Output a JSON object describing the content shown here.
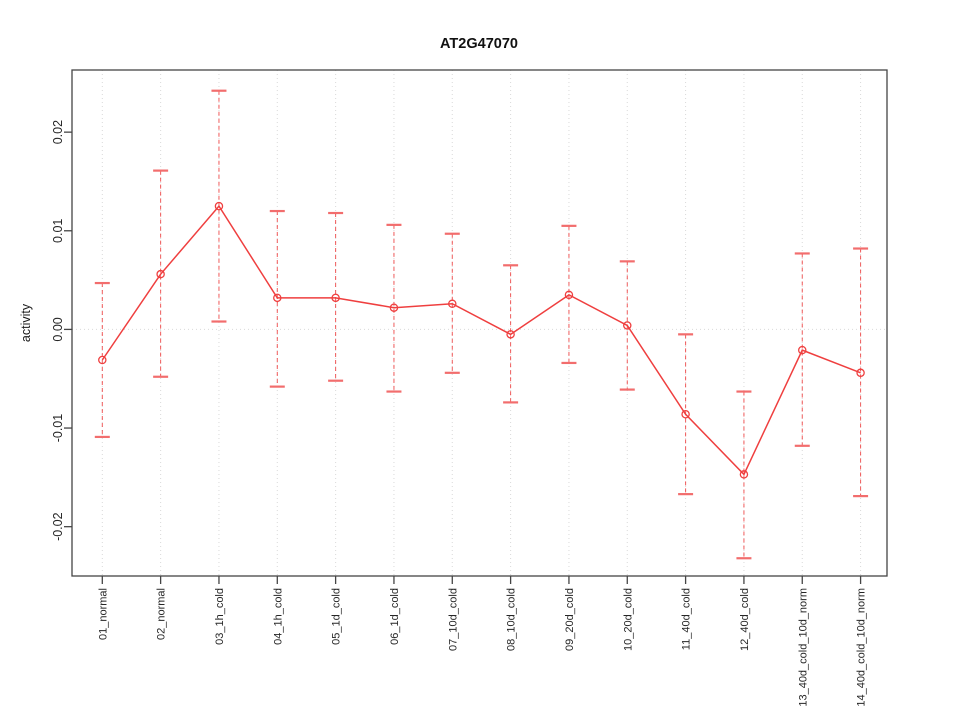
{
  "chart_data": {
    "type": "line",
    "title": "AT2G47070",
    "xlabel": "",
    "ylabel": "activity",
    "categories": [
      "01_normal",
      "02_normal",
      "03_1h_cold",
      "04_1h_cold",
      "05_1d_cold",
      "06_1d_cold",
      "07_10d_cold",
      "08_10d_cold",
      "09_20d_cold",
      "10_20d_cold",
      "11_40d_cold",
      "12_40d_cold",
      "13_40d_cold_10d_norm",
      "14_40d_cold_10d_norm"
    ],
    "series": [
      {
        "name": "activity",
        "values": [
          -0.0031,
          0.0056,
          0.0125,
          0.0032,
          0.0032,
          0.0022,
          0.0026,
          -0.0005,
          0.0035,
          0.0004,
          -0.0086,
          -0.0147,
          -0.0021,
          -0.0044
        ],
        "error_lower": [
          -0.0109,
          -0.0048,
          0.0008,
          -0.0058,
          -0.0052,
          -0.0063,
          -0.0044,
          -0.0074,
          -0.0034,
          -0.0061,
          -0.0167,
          -0.0232,
          -0.0118,
          -0.0169
        ],
        "error_upper": [
          0.0047,
          0.0161,
          0.0242,
          0.012,
          0.0118,
          0.0106,
          0.0097,
          0.0065,
          0.0105,
          0.0069,
          -0.0005,
          -0.0063,
          0.0077,
          0.0082
        ]
      }
    ],
    "yticks": {
      "values": [
        -0.02,
        -0.01,
        0,
        0.01,
        0.02
      ],
      "labels": [
        "-0.02",
        "-0.01",
        "0.00",
        "0.01",
        "0.02"
      ]
    },
    "ylim": [
      -0.025,
      0.0263
    ],
    "grid": {
      "vertical_per_category": true,
      "horizontal_zero_line": true,
      "pattern": "dotted"
    },
    "legend": "none",
    "marker": "open-circle",
    "error_bar_style": "dashed-line-with-caps",
    "style": {
      "line_color": "#ef3f3f",
      "cap_color": "#f26d6d",
      "grid_color": "#d9d9d9",
      "axis_color": "#454545",
      "text_color": "#262626",
      "background": "#ffffff"
    }
  }
}
